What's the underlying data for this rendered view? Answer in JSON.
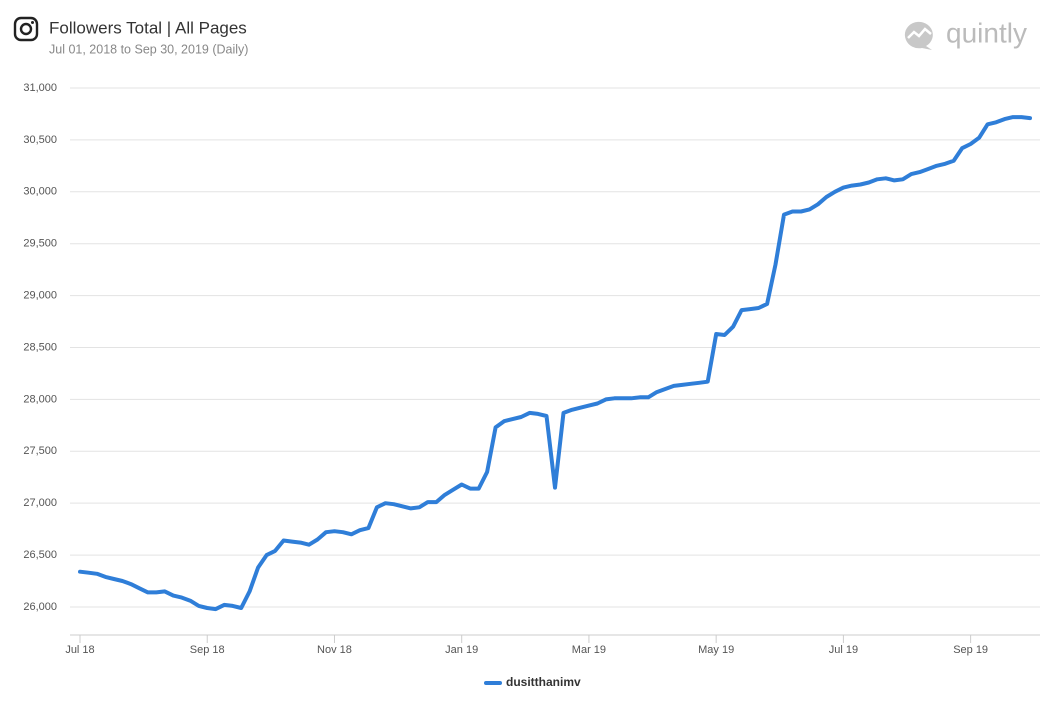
{
  "chart_data": {
    "type": "line",
    "title": "Followers Total | All Pages",
    "subtitle": "Jul 01, 2018 to Sep 30, 2019  (Daily)",
    "logo": "quintly",
    "categories": [
      "Jul 18",
      null,
      null,
      null,
      null,
      null,
      null,
      null,
      null,
      null,
      null,
      null,
      null,
      null,
      null,
      "Sep 18",
      null,
      null,
      null,
      null,
      null,
      null,
      null,
      null,
      null,
      null,
      null,
      null,
      null,
      null,
      "Nov 18",
      null,
      null,
      null,
      null,
      null,
      null,
      null,
      null,
      null,
      null,
      null,
      null,
      null,
      null,
      "Jan 19",
      null,
      null,
      null,
      null,
      null,
      null,
      null,
      null,
      null,
      null,
      null,
      null,
      null,
      null,
      "Mar 19",
      null,
      null,
      null,
      null,
      null,
      null,
      null,
      null,
      null,
      null,
      null,
      null,
      null,
      null,
      "May 19",
      null,
      null,
      null,
      null,
      null,
      null,
      null,
      null,
      null,
      null,
      null,
      null,
      null,
      null,
      "Jul 19",
      null,
      null,
      null,
      null,
      null,
      null,
      null,
      null,
      null,
      null,
      null,
      null,
      null,
      null,
      "Sep 19",
      null,
      null,
      null,
      null,
      null,
      null,
      null
    ],
    "series": [
      {
        "name": "dusitthanimv",
        "color": "#2f7ed8",
        "values": [
          26340,
          26330,
          26320,
          26290,
          26270,
          26250,
          26220,
          26180,
          26140,
          26140,
          26150,
          26110,
          26090,
          26060,
          26010,
          25990,
          25980,
          26020,
          26010,
          25990,
          26150,
          26380,
          26500,
          26540,
          26640,
          26630,
          26620,
          26600,
          26650,
          26720,
          26730,
          26720,
          26700,
          26740,
          26760,
          26960,
          27000,
          26990,
          26970,
          26950,
          26960,
          27010,
          27010,
          27080,
          27130,
          27180,
          27140,
          27140,
          27300,
          27730,
          27790,
          27810,
          27830,
          27870,
          27860,
          27840,
          27150,
          27870,
          27900,
          27920,
          27940,
          27960,
          28000,
          28010,
          28010,
          28010,
          28020,
          28020,
          28070,
          28100,
          28130,
          28140,
          28150,
          28160,
          28170,
          28630,
          28620,
          28700,
          28860,
          28870,
          28880,
          28920,
          29300,
          29780,
          29810,
          29810,
          29830,
          29880,
          29950,
          30000,
          30040,
          30060,
          30070,
          30090,
          30120,
          30130,
          30110,
          30120,
          30170,
          30190,
          30220,
          30250,
          30270,
          30300,
          30420,
          30460,
          30520,
          30650,
          30670,
          30700,
          30720,
          30720,
          30710
        ]
      }
    ],
    "ylim": [
      25730,
      31000
    ],
    "yticks": [
      {
        "value": 26000,
        "label": "26,000"
      },
      {
        "value": 26500,
        "label": "26,500"
      },
      {
        "value": 27000,
        "label": "27,000"
      },
      {
        "value": 27500,
        "label": "27,500"
      },
      {
        "value": 28000,
        "label": "28,000"
      },
      {
        "value": 28500,
        "label": "28,500"
      },
      {
        "value": 29000,
        "label": "29,000"
      },
      {
        "value": 29500,
        "label": "29,500"
      },
      {
        "value": 30000,
        "label": "30,000"
      },
      {
        "value": 30500,
        "label": "30,500"
      },
      {
        "value": 31000,
        "label": "31,000"
      }
    ],
    "grid": true,
    "legend": "bottom"
  }
}
